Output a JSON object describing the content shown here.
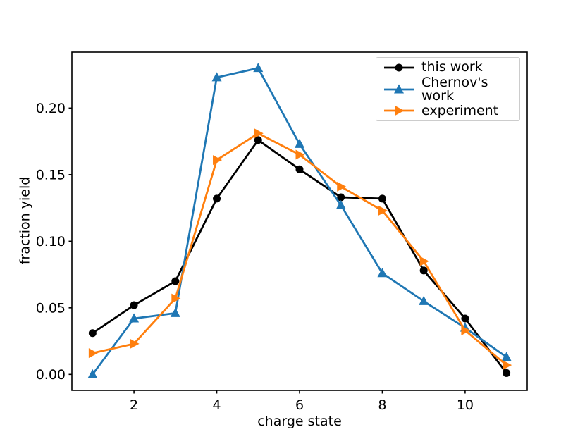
{
  "chart_data": {
    "type": "line",
    "title": "",
    "xlabel": "charge state",
    "ylabel": "fraction yield",
    "x": [
      1,
      2,
      3,
      4,
      5,
      6,
      7,
      8,
      9,
      10,
      11
    ],
    "series": [
      {
        "name": "this work",
        "color": "#000000",
        "marker": "circle",
        "values": [
          0.031,
          0.052,
          0.07,
          0.132,
          0.176,
          0.154,
          0.133,
          0.132,
          0.078,
          0.042,
          0.001
        ]
      },
      {
        "name": "Chernov's work",
        "color": "#1f77b4",
        "marker": "triangle-up",
        "values": [
          0.0,
          0.042,
          0.046,
          0.223,
          0.23,
          0.173,
          0.127,
          0.076,
          0.055,
          0.035,
          0.013
        ]
      },
      {
        "name": "experiment",
        "color": "#ff7f0e",
        "marker": "triangle-right",
        "values": [
          0.016,
          0.023,
          0.057,
          0.161,
          0.181,
          0.165,
          0.141,
          0.123,
          0.085,
          0.033,
          0.007
        ]
      }
    ],
    "xlim": [
      0.5,
      11.5
    ],
    "ylim": [
      -0.012,
      0.242
    ],
    "xticks": {
      "values": [
        2,
        4,
        6,
        8,
        10
      ],
      "labels": [
        "2",
        "4",
        "6",
        "8",
        "10"
      ]
    },
    "yticks": {
      "values": [
        0.0,
        0.05,
        0.1,
        0.15,
        0.2
      ],
      "labels": [
        "0.00",
        "0.05",
        "0.10",
        "0.15",
        "0.20"
      ]
    },
    "grid": false,
    "legend": {
      "position": "upper right",
      "entries": [
        "this work",
        "Chernov's work",
        "experiment"
      ]
    },
    "axes_color": "#000000",
    "background": "#ffffff"
  }
}
